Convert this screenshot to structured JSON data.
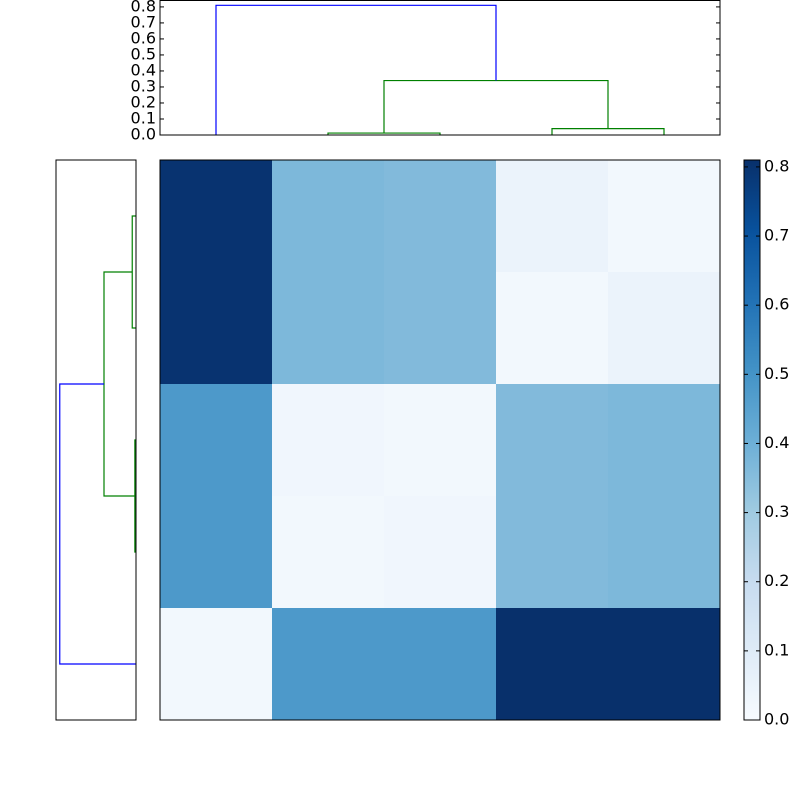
{
  "chart_data": [
    {
      "type": "dendrogram",
      "orientation": "top",
      "poslim": [
        0,
        50
      ],
      "hlim": [
        0,
        0.84
      ],
      "hticks": [
        {
          "value": 0,
          "label": "0.0"
        },
        0.1,
        0.2,
        0.3,
        0.4,
        0.5,
        0.6,
        0.7,
        0.8
      ],
      "links": [
        {
          "positions": [
            15,
            15,
            25,
            25
          ],
          "heights": [
            0,
            0.012,
            0.012,
            0
          ],
          "color": "#008000"
        },
        {
          "positions": [
            35,
            35,
            45,
            45
          ],
          "heights": [
            0,
            0.04,
            0.04,
            0
          ],
          "color": "#008000"
        },
        {
          "positions": [
            20,
            20,
            40,
            40
          ],
          "heights": [
            0.012,
            0.34,
            0.34,
            0.04
          ],
          "color": "#008000"
        },
        {
          "positions": [
            5,
            5,
            30,
            30
          ],
          "heights": [
            0,
            0.81,
            0.81,
            0.34
          ],
          "color": "#0000ff"
        }
      ]
    },
    {
      "type": "dendrogram",
      "orientation": "left",
      "poslim": [
        0,
        50
      ],
      "hlim": [
        0.85,
        0
      ],
      "links": [
        {
          "positions": [
            5,
            5,
            15,
            15
          ],
          "heights": [
            0,
            0.04,
            0.04,
            0
          ],
          "color": "#008000"
        },
        {
          "positions": [
            25,
            25,
            35,
            35
          ],
          "heights": [
            0,
            0.012,
            0.012,
            0
          ],
          "color": "#008000"
        },
        {
          "positions": [
            10,
            10,
            30,
            30
          ],
          "heights": [
            0.04,
            0.34,
            0.34,
            0.012
          ],
          "color": "#008000"
        },
        {
          "positions": [
            20,
            20,
            45,
            45
          ],
          "heights": [
            0.34,
            0.81,
            0.81,
            0
          ],
          "color": "#0000ff"
        }
      ]
    },
    {
      "type": "heatmap",
      "values": [
        [
          0.8,
          0.37,
          0.36,
          0.05,
          0.02
        ],
        [
          0.8,
          0.37,
          0.36,
          0.02,
          0.05
        ],
        [
          0.48,
          0.03,
          0.02,
          0.36,
          0.37
        ],
        [
          0.48,
          0.02,
          0.03,
          0.36,
          0.37
        ],
        [
          0.02,
          0.48,
          0.48,
          0.81,
          0.81
        ]
      ],
      "vlim": [
        0,
        0.81
      ],
      "colormap": [
        "#f7fbff",
        "#deebf7",
        "#c6dbef",
        "#9ecae1",
        "#6baed6",
        "#4292c6",
        "#2171b5",
        "#08519c",
        "#08306b"
      ],
      "colorbar_ticks": [
        {
          "value": 0,
          "label": "0.0"
        },
        0.1,
        0.2,
        0.3,
        0.4,
        0.5,
        0.6,
        0.7,
        0.8
      ]
    }
  ]
}
